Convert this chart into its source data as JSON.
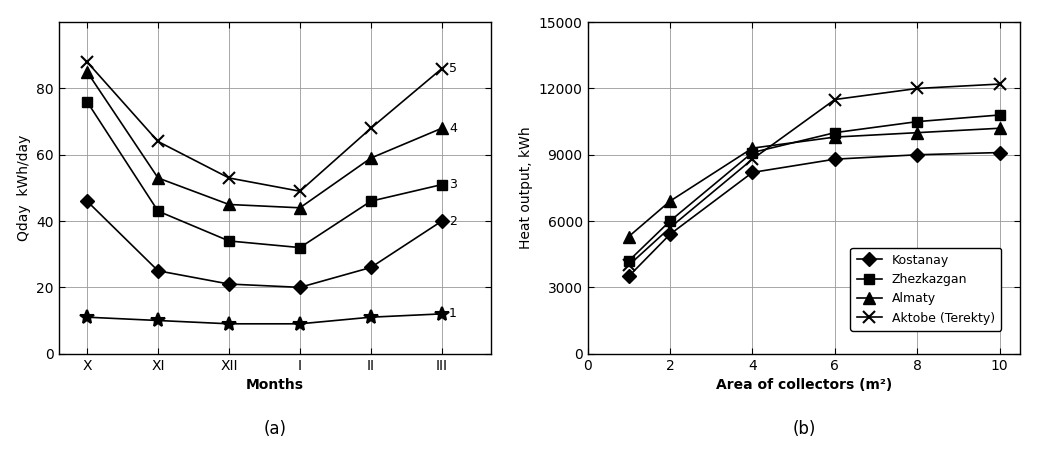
{
  "left": {
    "months": [
      "X",
      "XI",
      "XII",
      "I",
      "II",
      "III"
    ],
    "series": {
      "1": [
        11,
        10,
        9,
        9,
        11,
        12
      ],
      "2": [
        46,
        25,
        21,
        20,
        26,
        40
      ],
      "3": [
        76,
        43,
        34,
        32,
        46,
        51
      ],
      "4": [
        85,
        53,
        45,
        44,
        59,
        68
      ],
      "5": [
        88,
        64,
        53,
        49,
        68,
        86
      ]
    },
    "markers": {
      "1": "*",
      "2": "D",
      "3": "s",
      "4": "^",
      "5": "x"
    },
    "markersizes": {
      "1": 10,
      "2": 7,
      "3": 7,
      "4": 8,
      "5": 9
    },
    "ylabel": "Qday  kWh/day",
    "xlabel": "Months",
    "label_a": "(a)",
    "ylim": [
      0,
      100
    ],
    "yticks": [
      0,
      20,
      40,
      60,
      80
    ],
    "series_labels": [
      "1",
      "2",
      "3",
      "4",
      "5"
    ]
  },
  "right": {
    "x": [
      1,
      2,
      4,
      6,
      8,
      10
    ],
    "series": {
      "Kostanay": [
        3500,
        5400,
        8200,
        8800,
        9000,
        9100
      ],
      "Zhezkazgan": [
        4200,
        6000,
        9100,
        10000,
        10500,
        10800
      ],
      "Almaty": [
        5300,
        6900,
        9300,
        9800,
        10000,
        10200
      ],
      "Aktobe (Terekty)": [
        4000,
        5700,
        8800,
        11500,
        12000,
        12200
      ]
    },
    "markers": {
      "Kostanay": "D",
      "Zhezkazgan": "s",
      "Almaty": "^",
      "Aktobe (Terekty)": "x"
    },
    "markersizes": {
      "Kostanay": 7,
      "Zhezkazgan": 7,
      "Almaty": 8,
      "Aktobe (Terekty)": 9
    },
    "ylabel": "Heat output, kWh",
    "xlabel": "Area of collectors (m²)",
    "label_b": "(b)",
    "ylim": [
      0,
      15000
    ],
    "yticks": [
      0,
      3000,
      6000,
      9000,
      12000,
      15000
    ],
    "xlim": [
      0,
      10.5
    ],
    "xticks": [
      0,
      2,
      4,
      6,
      8,
      10
    ]
  },
  "line_color": "#000000",
  "bg_color": "#ffffff",
  "grid_color": "#999999"
}
